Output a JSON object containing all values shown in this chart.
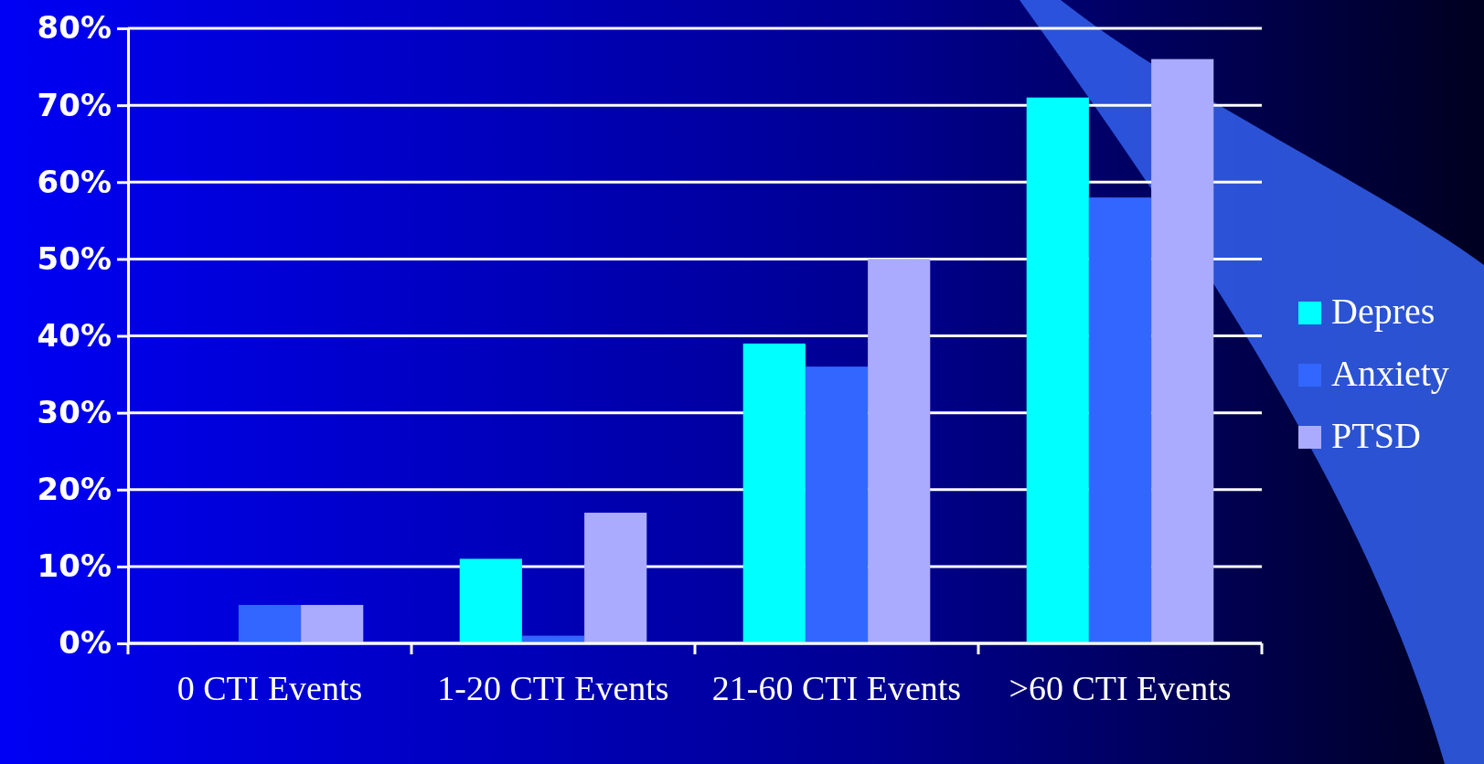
{
  "chart_data": {
    "type": "bar",
    "categories": [
      "0 CTI Events",
      "1-20 CTI Events",
      "21-60 CTI Events",
      ">60 CTI Events"
    ],
    "series": [
      {
        "name": "Depres",
        "color": "#00ffff",
        "values": [
          null,
          11,
          39,
          71
        ]
      },
      {
        "name": "Anxiety",
        "color": "#3366ff",
        "values": [
          5,
          1,
          36,
          58
        ]
      },
      {
        "name": "PTSD",
        "color": "#aaaaff",
        "values": [
          5,
          17,
          50,
          76
        ]
      }
    ],
    "ylim": [
      0,
      80
    ],
    "yticks": [
      {
        "value": 0,
        "label": "0%"
      },
      {
        "value": 10,
        "label": "10%"
      },
      {
        "value": 20,
        "label": "20%"
      },
      {
        "value": 30,
        "label": "30%"
      },
      {
        "value": 40,
        "label": "40%"
      },
      {
        "value": 50,
        "label": "50%"
      },
      {
        "value": 60,
        "label": "60%"
      },
      {
        "value": 70,
        "label": "70%"
      },
      {
        "value": 80,
        "label": "80%"
      }
    ],
    "grid": "y",
    "legend": "right"
  }
}
